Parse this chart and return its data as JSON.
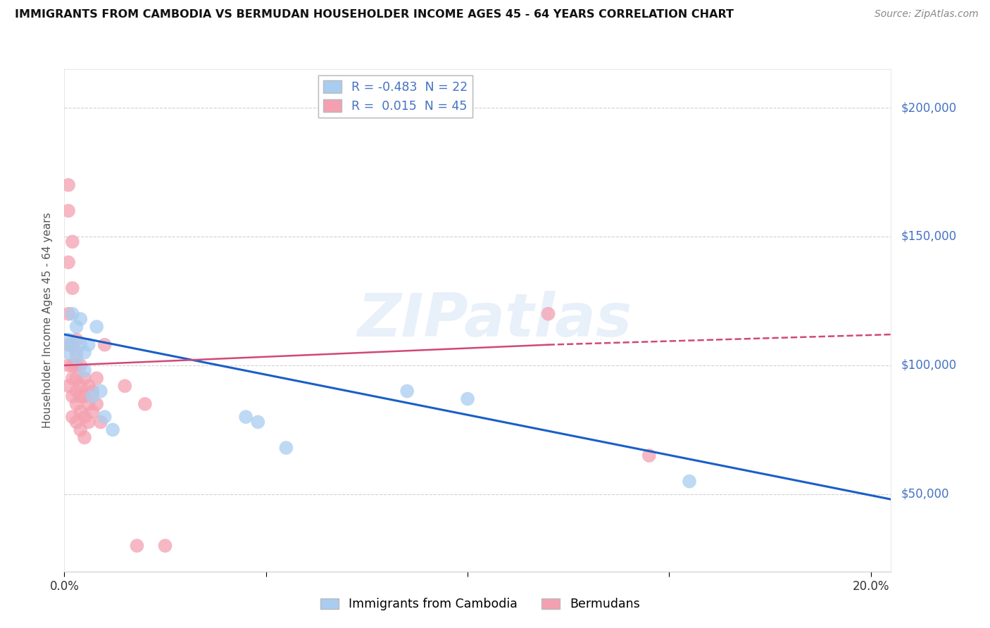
{
  "title": "IMMIGRANTS FROM CAMBODIA VS BERMUDAN HOUSEHOLDER INCOME AGES 45 - 64 YEARS CORRELATION CHART",
  "source": "Source: ZipAtlas.com",
  "ylabel": "Householder Income Ages 45 - 64 years",
  "xlim": [
    0.0,
    0.205
  ],
  "ylim": [
    20000,
    215000
  ],
  "background_color": "#ffffff",
  "grid_color": "#cccccc",
  "watermark": "ZIPatlas",
  "cambodia_x": [
    0.001,
    0.001,
    0.002,
    0.002,
    0.003,
    0.003,
    0.004,
    0.004,
    0.005,
    0.005,
    0.006,
    0.007,
    0.008,
    0.009,
    0.01,
    0.012,
    0.045,
    0.048,
    0.055,
    0.085,
    0.1,
    0.155
  ],
  "cambodia_y": [
    110000,
    105000,
    120000,
    108000,
    115000,
    103000,
    118000,
    108000,
    105000,
    98000,
    108000,
    88000,
    115000,
    90000,
    80000,
    75000,
    80000,
    78000,
    68000,
    90000,
    87000,
    55000
  ],
  "cambodia_color": "#a8cdf0",
  "bermuda_x": [
    0.001,
    0.001,
    0.001,
    0.001,
    0.001,
    0.001,
    0.001,
    0.002,
    0.002,
    0.002,
    0.002,
    0.002,
    0.002,
    0.002,
    0.003,
    0.003,
    0.003,
    0.003,
    0.003,
    0.003,
    0.003,
    0.004,
    0.004,
    0.004,
    0.004,
    0.004,
    0.005,
    0.005,
    0.005,
    0.005,
    0.006,
    0.006,
    0.006,
    0.007,
    0.007,
    0.008,
    0.008,
    0.009,
    0.01,
    0.015,
    0.018,
    0.02,
    0.025,
    0.12,
    0.145
  ],
  "bermuda_y": [
    170000,
    160000,
    140000,
    120000,
    108000,
    100000,
    92000,
    148000,
    130000,
    108000,
    100000,
    95000,
    88000,
    80000,
    110000,
    105000,
    100000,
    95000,
    90000,
    85000,
    78000,
    100000,
    92000,
    88000,
    82000,
    75000,
    95000,
    88000,
    80000,
    72000,
    92000,
    85000,
    78000,
    90000,
    82000,
    95000,
    85000,
    78000,
    108000,
    92000,
    30000,
    85000,
    30000,
    120000,
    65000
  ],
  "bermuda_color": "#f4a0b0",
  "trend_cambodia_x0": 0.0,
  "trend_cambodia_y0": 112000,
  "trend_cambodia_x1": 0.205,
  "trend_cambodia_y1": 48000,
  "trend_cambodia_color": "#1a5fc8",
  "trend_bermuda_solid_x0": 0.0,
  "trend_bermuda_solid_y0": 100000,
  "trend_bermuda_solid_x1": 0.12,
  "trend_bermuda_solid_y1": 108000,
  "trend_bermuda_dashed_x0": 0.12,
  "trend_bermuda_dashed_y0": 108000,
  "trend_bermuda_dashed_x1": 0.205,
  "trend_bermuda_dashed_y1": 112000,
  "trend_bermuda_color": "#d04878",
  "legend_R1": "-0.483",
  "legend_N1": "22",
  "legend_R2": "0.015",
  "legend_N2": "45",
  "legend_color1": "#a8cdf0",
  "legend_color2": "#f4a0b0",
  "bottom_legend_label1": "Immigrants from Cambodia",
  "bottom_legend_label2": "Bermudans"
}
